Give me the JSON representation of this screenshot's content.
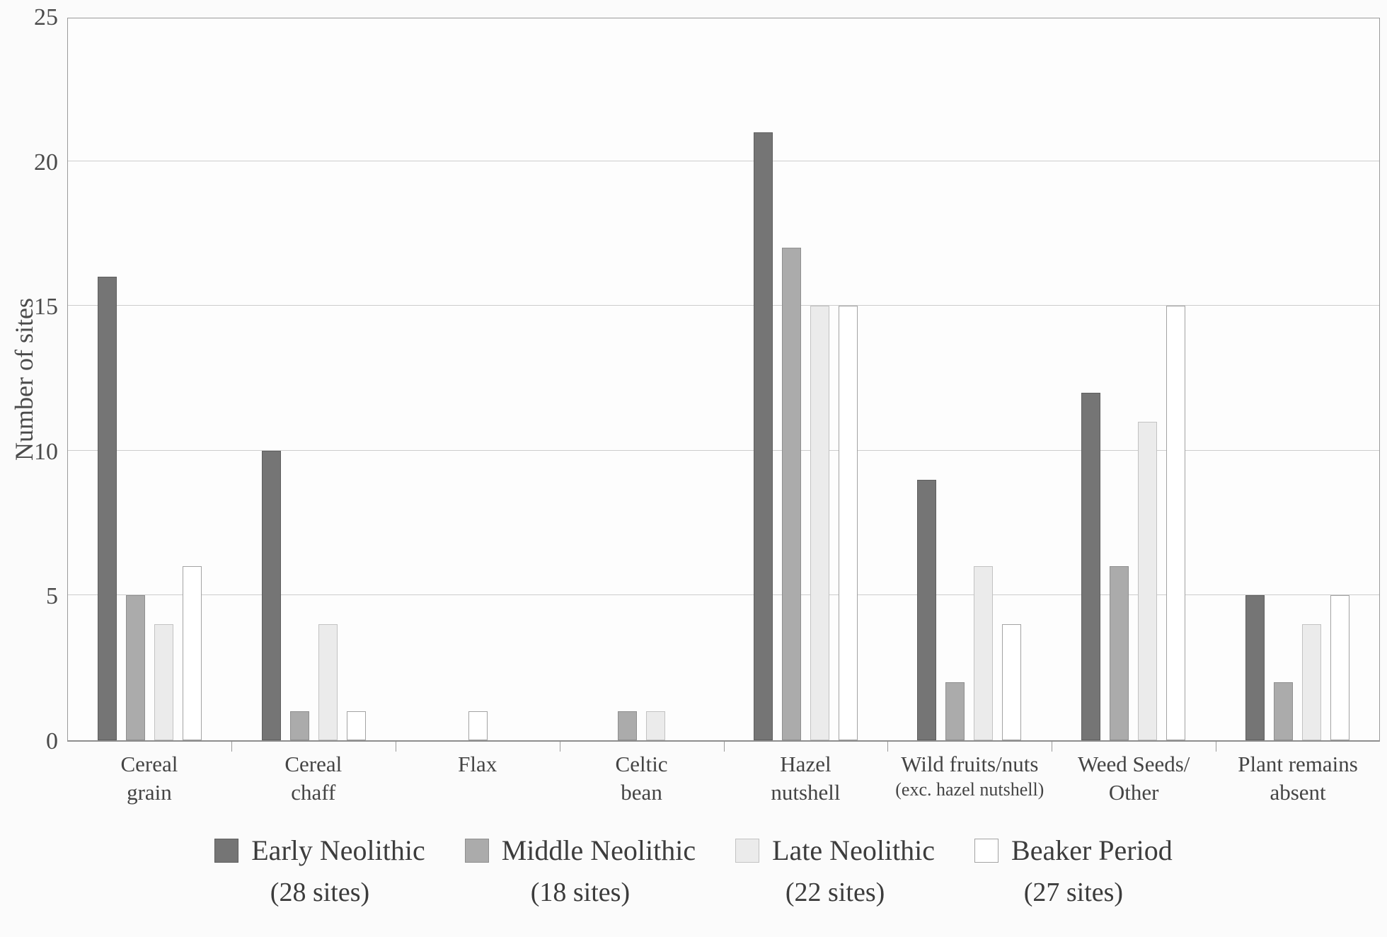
{
  "chart_data": {
    "type": "bar",
    "title": "",
    "xlabel": "",
    "ylabel": "Number of sites",
    "ylim": [
      0,
      25
    ],
    "yticks": [
      0,
      5,
      10,
      15,
      20,
      25
    ],
    "grid": "horizontal",
    "legend_position": "bottom",
    "colors": {
      "plot_background": "#fdfdfd",
      "page_background": "#fbfbfb",
      "gridline": "#cdcdcd",
      "axis_border": "#9a9a9a",
      "text": "#3f3f3f"
    },
    "categories": [
      {
        "line1": "Cereal",
        "line2": "grain",
        "line2_small": false
      },
      {
        "line1": "Cereal",
        "line2": "chaff",
        "line2_small": false
      },
      {
        "line1": "Flax",
        "line2": "",
        "line2_small": false
      },
      {
        "line1": "Celtic",
        "line2": "bean",
        "line2_small": false
      },
      {
        "line1": "Hazel",
        "line2": "nutshell",
        "line2_small": false
      },
      {
        "line1": "Wild fruits/nuts",
        "line2": "(exc. hazel nutshell)",
        "line2_small": true
      },
      {
        "line1": "Weed Seeds/",
        "line2": "Other",
        "line2_small": false
      },
      {
        "line1": "Plant remains",
        "line2": "absent",
        "line2_small": false
      }
    ],
    "series": [
      {
        "name": "Early Neolithic",
        "sites_label": "(28 sites)",
        "color": "#757575",
        "border": "#5e5e5e",
        "values": [
          16,
          10,
          0,
          0,
          21,
          9,
          12,
          5
        ]
      },
      {
        "name": "Middle Neolithic",
        "sites_label": "(18 sites)",
        "color": "#ababab",
        "border": "#8f8f8f",
        "values": [
          5,
          1,
          0,
          1,
          17,
          2,
          6,
          2
        ]
      },
      {
        "name": "Late Neolithic",
        "sites_label": "(22 sites)",
        "color": "#ebebeb",
        "border": "#c2c2c2",
        "values": [
          4,
          4,
          0,
          1,
          15,
          6,
          11,
          4
        ]
      },
      {
        "name": "Beaker Period",
        "sites_label": "(27 sites)",
        "color": "#ffffff",
        "border": "#a3a3a3",
        "values": [
          6,
          1,
          1,
          0,
          15,
          4,
          15,
          5
        ]
      }
    ]
  }
}
